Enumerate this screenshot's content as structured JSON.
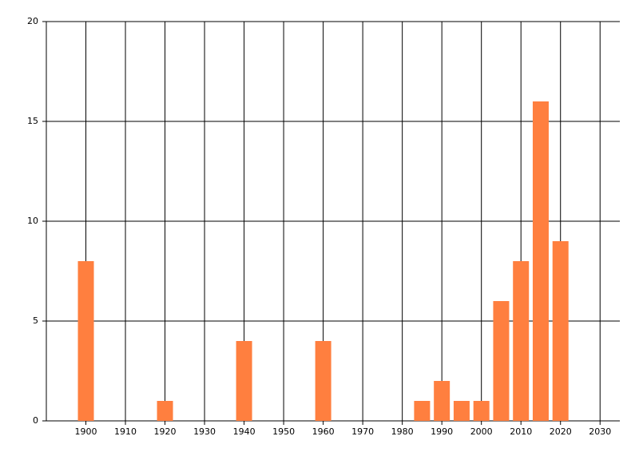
{
  "chart_data": {
    "type": "bar",
    "x": [
      1900,
      1920,
      1940,
      1960,
      1985,
      1990,
      1995,
      2000,
      2005,
      2010,
      2015,
      2020
    ],
    "values": [
      8,
      1,
      4,
      4,
      1,
      2,
      1,
      1,
      6,
      8,
      16,
      9
    ],
    "color": "#ff7f3f",
    "xlim": [
      1890,
      2035
    ],
    "xticks": [
      1900,
      1910,
      1920,
      1930,
      1940,
      1950,
      1960,
      1970,
      1980,
      1990,
      2000,
      2010,
      2020,
      2030
    ],
    "ylim": [
      0,
      20
    ],
    "yticks": [
      0,
      5,
      10,
      15,
      20
    ],
    "grid": true
  }
}
